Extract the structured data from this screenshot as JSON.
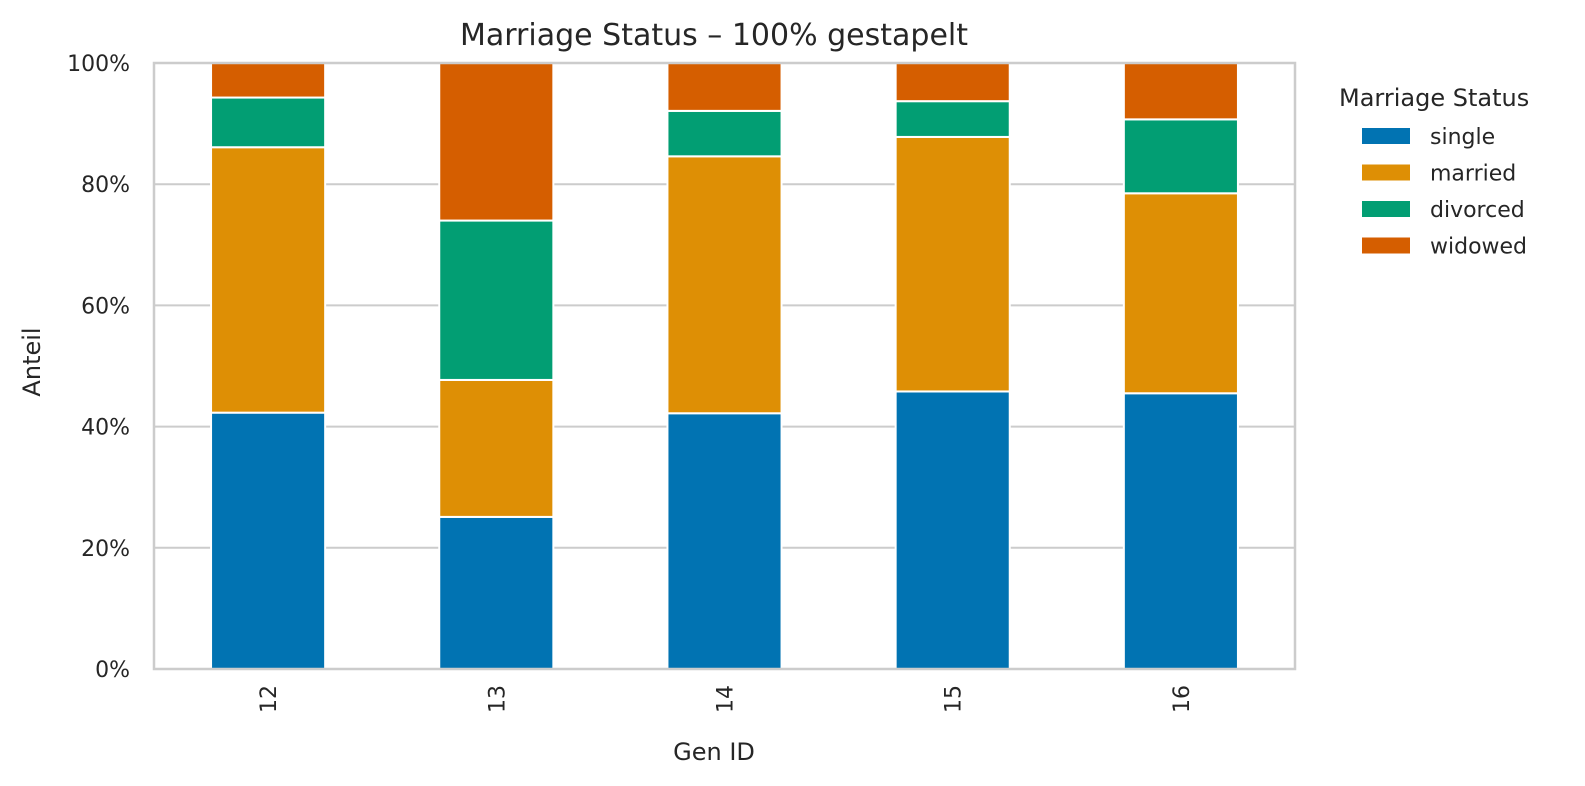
{
  "chart_data": {
    "type": "bar",
    "stacked": "100%",
    "title": "Marriage Status – 100% gestapelt",
    "xlabel": "Gen ID",
    "ylabel": "Anteil",
    "categories": [
      "12",
      "13",
      "14",
      "15",
      "16"
    ],
    "ylim": [
      0,
      1
    ],
    "yticks": [
      0,
      0.2,
      0.4,
      0.6,
      0.8,
      1.0
    ],
    "ytick_labels": [
      "0%",
      "20%",
      "40%",
      "60%",
      "80%",
      "100%"
    ],
    "grid": true,
    "legend": {
      "title": "Marriage Status",
      "placement": "outside-right"
    },
    "series": [
      {
        "name": "single",
        "color": "#0173b2",
        "values": [
          0.423,
          0.251,
          0.422,
          0.458,
          0.455
        ]
      },
      {
        "name": "married",
        "color": "#de8f05",
        "values": [
          0.438,
          0.226,
          0.424,
          0.42,
          0.33
        ]
      },
      {
        "name": "divorced",
        "color": "#029e73",
        "values": [
          0.082,
          0.263,
          0.075,
          0.059,
          0.122
        ]
      },
      {
        "name": "widowed",
        "color": "#d55e00",
        "values": [
          0.057,
          0.26,
          0.079,
          0.063,
          0.093
        ]
      }
    ]
  }
}
